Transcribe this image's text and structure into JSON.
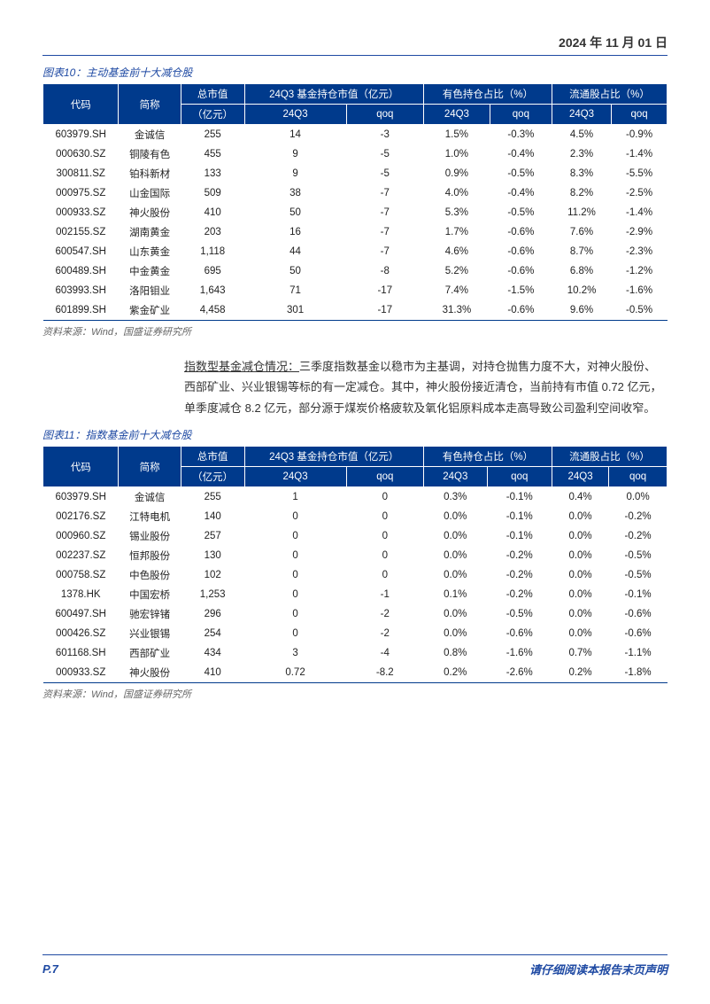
{
  "date": "2024 年 11 月 01 日",
  "table10": {
    "type": "table",
    "title": "图表10：主动基金前十大减仓股",
    "source": "资料来源：Wind，国盛证券研究所",
    "header_bg": "#003a8c",
    "header_color": "#ffffff",
    "border_color": "#003a8c",
    "columns_top": [
      "代码",
      "简称",
      "总市值",
      "24Q3 基金持仓市值（亿元）",
      "有色持仓占比（%）",
      "流通股占比（%）"
    ],
    "columns_sub": [
      "（亿元）",
      "24Q3",
      "qoq",
      "24Q3",
      "qoq",
      "24Q3",
      "qoq"
    ],
    "rows": [
      [
        "603979.SH",
        "金诚信",
        "255",
        "14",
        "-3",
        "1.5%",
        "-0.3%",
        "4.5%",
        "-0.9%"
      ],
      [
        "000630.SZ",
        "铜陵有色",
        "455",
        "9",
        "-5",
        "1.0%",
        "-0.4%",
        "2.3%",
        "-1.4%"
      ],
      [
        "300811.SZ",
        "铂科新材",
        "133",
        "9",
        "-5",
        "0.9%",
        "-0.5%",
        "8.3%",
        "-5.5%"
      ],
      [
        "000975.SZ",
        "山金国际",
        "509",
        "38",
        "-7",
        "4.0%",
        "-0.4%",
        "8.2%",
        "-2.5%"
      ],
      [
        "000933.SZ",
        "神火股份",
        "410",
        "50",
        "-7",
        "5.3%",
        "-0.5%",
        "11.2%",
        "-1.4%"
      ],
      [
        "002155.SZ",
        "湖南黄金",
        "203",
        "16",
        "-7",
        "1.7%",
        "-0.6%",
        "7.6%",
        "-2.9%"
      ],
      [
        "600547.SH",
        "山东黄金",
        "1,118",
        "44",
        "-7",
        "4.6%",
        "-0.6%",
        "8.7%",
        "-2.3%"
      ],
      [
        "600489.SH",
        "中金黄金",
        "695",
        "50",
        "-8",
        "5.2%",
        "-0.6%",
        "6.8%",
        "-1.2%"
      ],
      [
        "603993.SH",
        "洛阳钼业",
        "1,643",
        "71",
        "-17",
        "7.4%",
        "-1.5%",
        "10.2%",
        "-1.6%"
      ],
      [
        "601899.SH",
        "紫金矿业",
        "4,458",
        "301",
        "-17",
        "31.3%",
        "-0.6%",
        "9.6%",
        "-0.5%"
      ]
    ]
  },
  "paragraph": {
    "lead": "指数型基金减仓情况：",
    "body": "三季度指数基金以稳市为主基调，对持仓抛售力度不大，对神火股份、西部矿业、兴业银锡等标的有一定减仓。其中，神火股份接近清仓，当前持有市值 0.72 亿元，单季度减仓 8.2 亿元，部分源于煤炭价格疲软及氧化铝原料成本走高导致公司盈利空间收窄。"
  },
  "table11": {
    "type": "table",
    "title": "图表11：指数基金前十大减仓股",
    "source": "资料来源：Wind，国盛证券研究所",
    "header_bg": "#003a8c",
    "header_color": "#ffffff",
    "border_color": "#003a8c",
    "columns_top": [
      "代码",
      "简称",
      "总市值",
      "24Q3 基金持仓市值（亿元）",
      "有色持仓占比（%）",
      "流通股占比（%）"
    ],
    "columns_sub": [
      "（亿元）",
      "24Q3",
      "qoq",
      "24Q3",
      "qoq",
      "24Q3",
      "qoq"
    ],
    "rows": [
      [
        "603979.SH",
        "金诚信",
        "255",
        "1",
        "0",
        "0.3%",
        "-0.1%",
        "0.4%",
        "0.0%"
      ],
      [
        "002176.SZ",
        "江特电机",
        "140",
        "0",
        "0",
        "0.0%",
        "-0.1%",
        "0.0%",
        "-0.2%"
      ],
      [
        "000960.SZ",
        "锡业股份",
        "257",
        "0",
        "0",
        "0.0%",
        "-0.1%",
        "0.0%",
        "-0.2%"
      ],
      [
        "002237.SZ",
        "恒邦股份",
        "130",
        "0",
        "0",
        "0.0%",
        "-0.2%",
        "0.0%",
        "-0.5%"
      ],
      [
        "000758.SZ",
        "中色股份",
        "102",
        "0",
        "0",
        "0.0%",
        "-0.2%",
        "0.0%",
        "-0.5%"
      ],
      [
        "1378.HK",
        "中国宏桥",
        "1,253",
        "0",
        "-1",
        "0.1%",
        "-0.2%",
        "0.0%",
        "-0.1%"
      ],
      [
        "600497.SH",
        "驰宏锌锗",
        "296",
        "0",
        "-2",
        "0.0%",
        "-0.5%",
        "0.0%",
        "-0.6%"
      ],
      [
        "000426.SZ",
        "兴业银锡",
        "254",
        "0",
        "-2",
        "0.0%",
        "-0.6%",
        "0.0%",
        "-0.6%"
      ],
      [
        "601168.SH",
        "西部矿业",
        "434",
        "3",
        "-4",
        "0.8%",
        "-1.6%",
        "0.7%",
        "-1.1%"
      ],
      [
        "000933.SZ",
        "神火股份",
        "410",
        "0.72",
        "-8.2",
        "0.2%",
        "-2.6%",
        "0.2%",
        "-1.8%"
      ]
    ]
  },
  "footer": {
    "page": "P.7",
    "disclaimer": "请仔细阅读本报告末页声明"
  }
}
